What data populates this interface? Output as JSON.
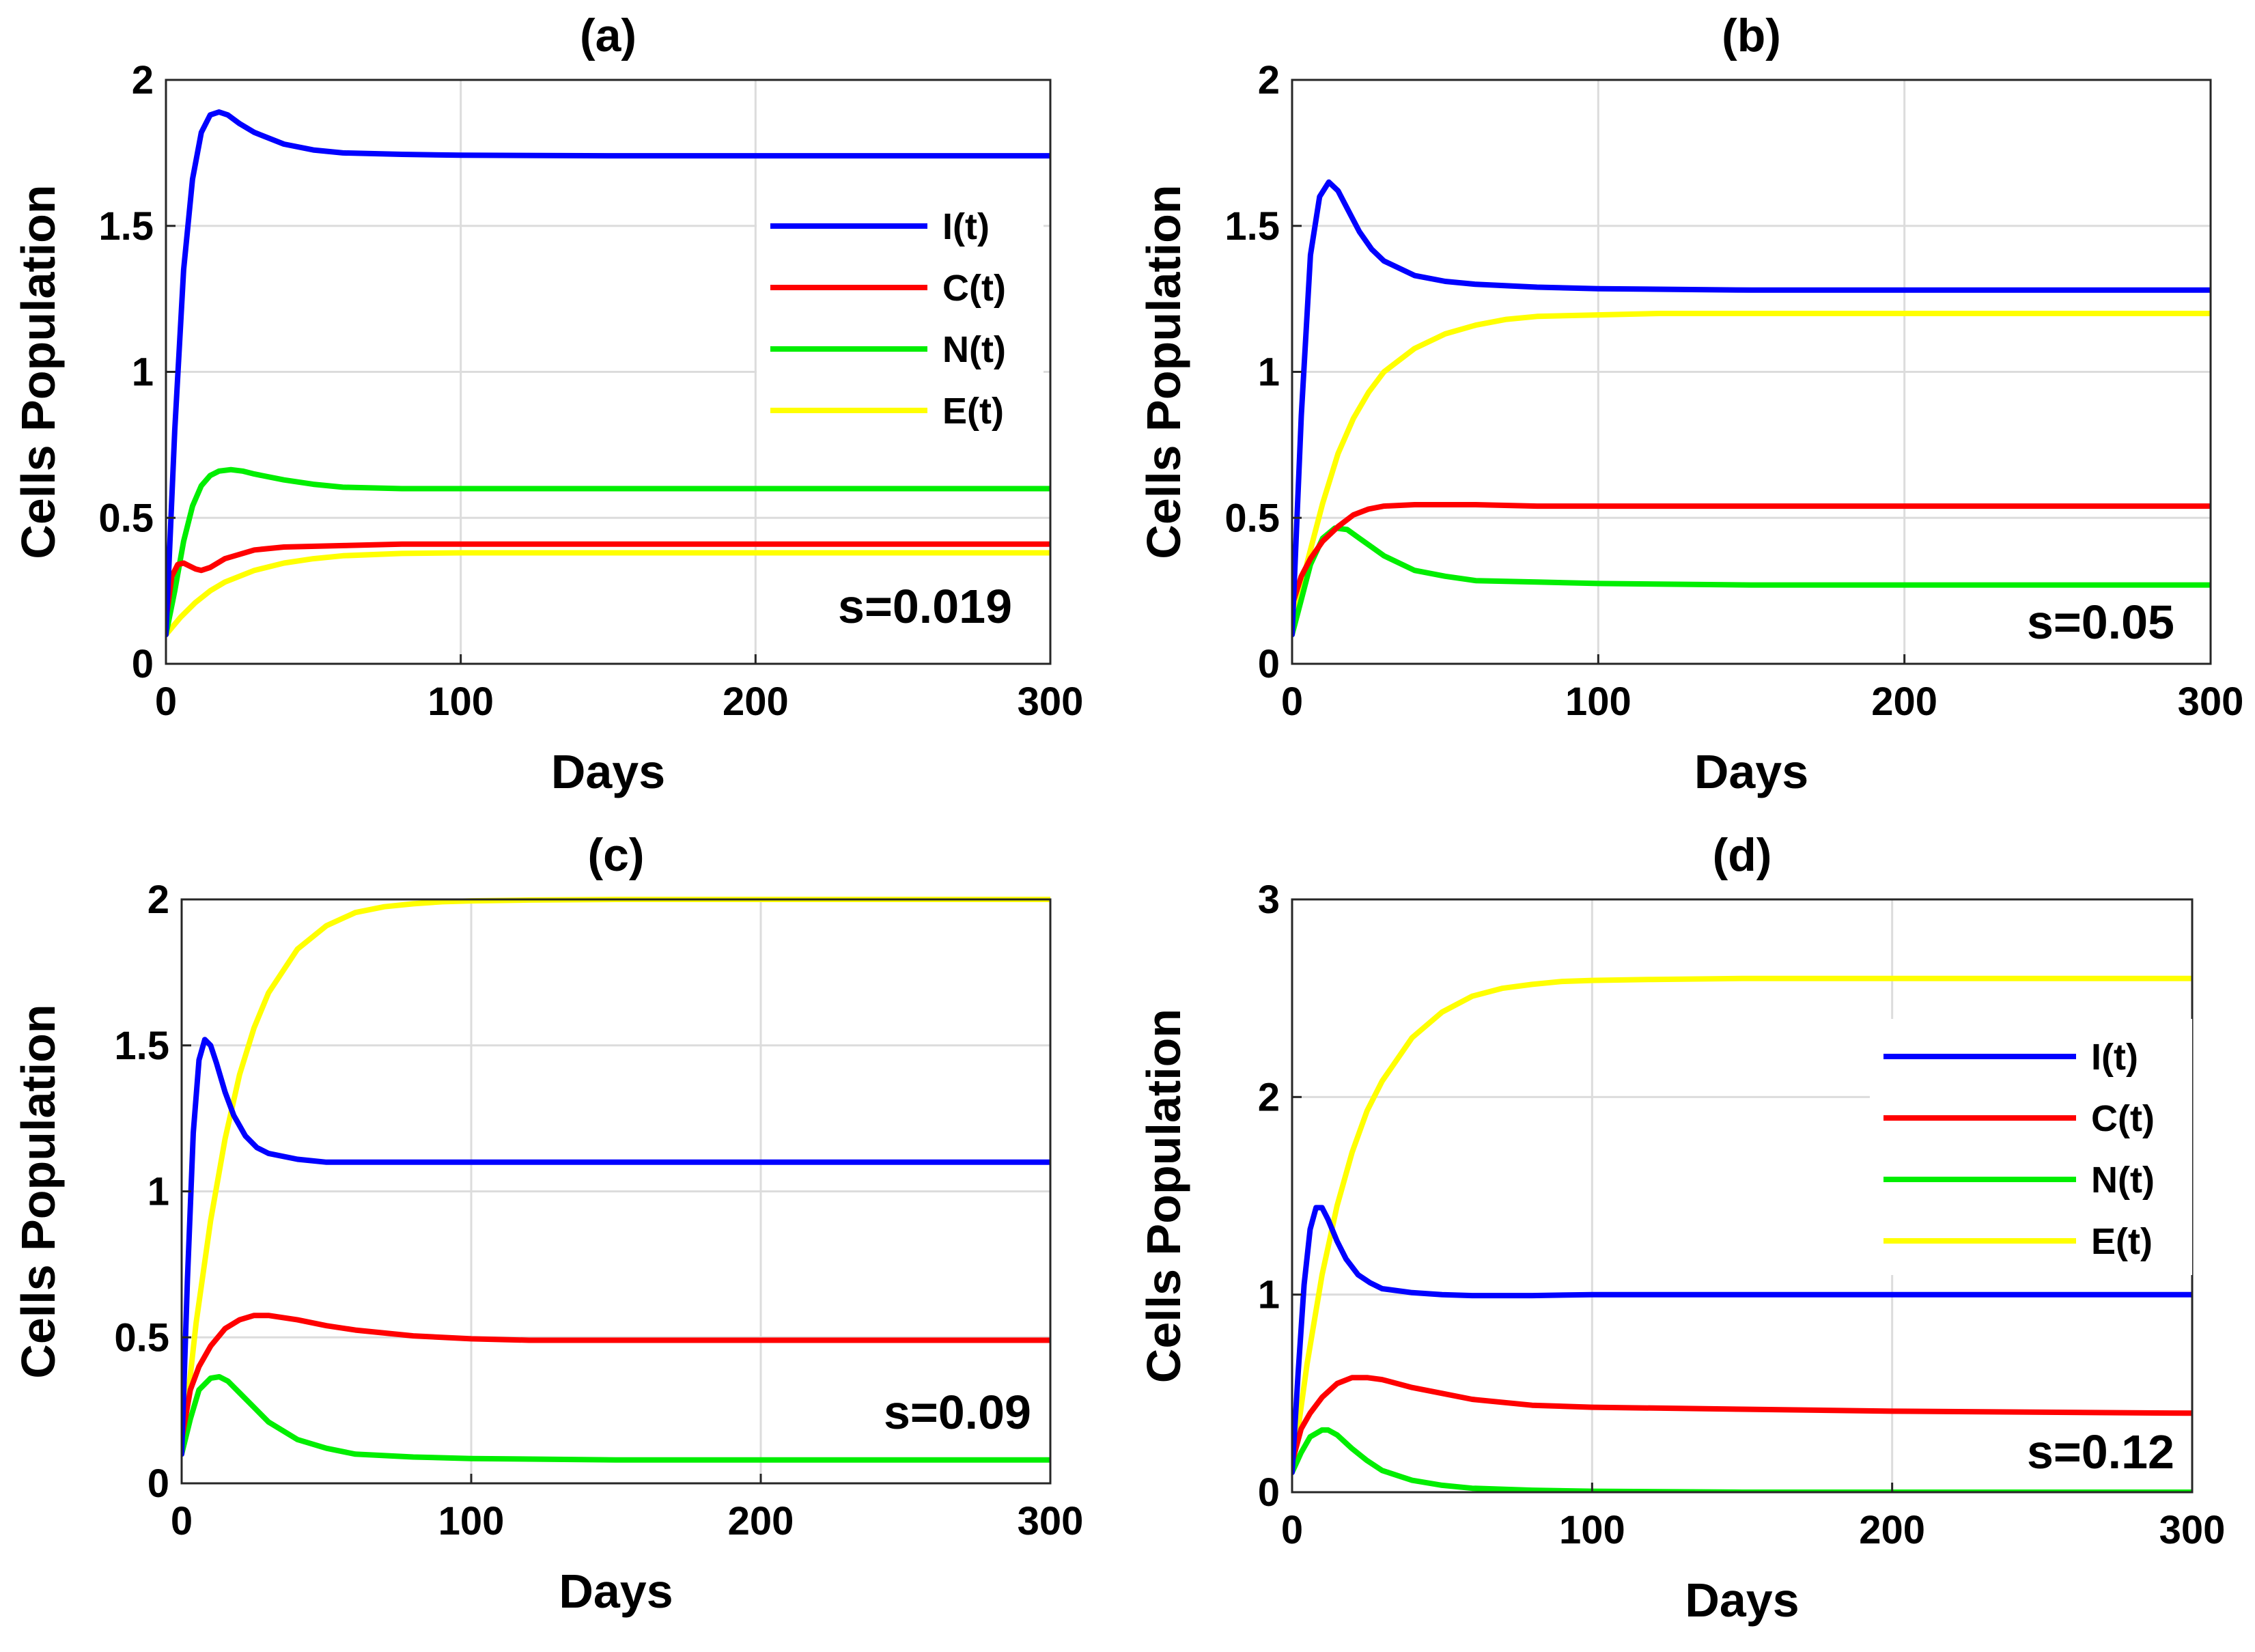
{
  "chart_data": [
    {
      "type": "line",
      "title": "(a)",
      "xlabel": "Days",
      "ylabel": "Cells Population",
      "xlim": [
        0,
        300
      ],
      "ylim": [
        0,
        2
      ],
      "xticks": [
        0,
        100,
        200,
        300
      ],
      "yticks": [
        0,
        0.5,
        1,
        1.5,
        2
      ],
      "ytick_labels": [
        "0",
        "0.5",
        "1",
        "1.5",
        "2"
      ],
      "grid": true,
      "annotation": "s=0.019",
      "legend": {
        "visible": true,
        "position": "top-right"
      },
      "series": [
        {
          "name": "I(t)",
          "color": "#0000ff",
          "x": [
            0,
            3,
            6,
            9,
            12,
            15,
            18,
            21,
            25,
            30,
            40,
            50,
            60,
            80,
            100,
            150,
            200,
            250,
            300
          ],
          "y": [
            0.1,
            0.8,
            1.35,
            1.66,
            1.82,
            1.88,
            1.89,
            1.88,
            1.85,
            1.82,
            1.78,
            1.76,
            1.75,
            1.745,
            1.742,
            1.74,
            1.74,
            1.74,
            1.74
          ]
        },
        {
          "name": "C(t)",
          "color": "#ff0000",
          "x": [
            0,
            2,
            4,
            6,
            8,
            10,
            12,
            15,
            20,
            30,
            40,
            60,
            80,
            100,
            150,
            200,
            300
          ],
          "y": [
            0.15,
            0.3,
            0.34,
            0.345,
            0.335,
            0.325,
            0.32,
            0.33,
            0.36,
            0.39,
            0.4,
            0.405,
            0.41,
            0.41,
            0.41,
            0.41,
            0.41
          ]
        },
        {
          "name": "N(t)",
          "color": "#00ee00",
          "x": [
            0,
            3,
            6,
            9,
            12,
            15,
            18,
            22,
            26,
            30,
            40,
            50,
            60,
            80,
            100,
            150,
            200,
            300
          ],
          "y": [
            0.1,
            0.25,
            0.42,
            0.54,
            0.61,
            0.645,
            0.66,
            0.665,
            0.66,
            0.65,
            0.63,
            0.615,
            0.605,
            0.6,
            0.6,
            0.6,
            0.6,
            0.6
          ]
        },
        {
          "name": "E(t)",
          "color": "#ffff00",
          "x": [
            0,
            5,
            10,
            15,
            20,
            30,
            40,
            50,
            60,
            80,
            100,
            150,
            200,
            300
          ],
          "y": [
            0.1,
            0.16,
            0.21,
            0.25,
            0.28,
            0.32,
            0.345,
            0.36,
            0.37,
            0.378,
            0.38,
            0.38,
            0.38,
            0.38
          ]
        }
      ]
    },
    {
      "type": "line",
      "title": "(b)",
      "xlabel": "Days",
      "ylabel": "Cells Population",
      "xlim": [
        0,
        300
      ],
      "ylim": [
        0,
        2
      ],
      "xticks": [
        0,
        100,
        200,
        300
      ],
      "yticks": [
        0,
        0.5,
        1,
        1.5,
        2
      ],
      "ytick_labels": [
        "0",
        "0.5",
        "1",
        "1.5",
        "2"
      ],
      "grid": true,
      "annotation": "s=0.05",
      "legend": {
        "visible": false
      },
      "series": [
        {
          "name": "I(t)",
          "color": "#0000ff",
          "x": [
            0,
            3,
            6,
            9,
            12,
            15,
            18,
            22,
            26,
            30,
            40,
            50,
            60,
            80,
            100,
            150,
            200,
            300
          ],
          "y": [
            0.1,
            0.85,
            1.4,
            1.6,
            1.65,
            1.62,
            1.56,
            1.48,
            1.42,
            1.38,
            1.33,
            1.31,
            1.3,
            1.29,
            1.285,
            1.28,
            1.28,
            1.28
          ]
        },
        {
          "name": "C(t)",
          "color": "#ff0000",
          "x": [
            0,
            3,
            6,
            10,
            15,
            20,
            25,
            30,
            40,
            50,
            60,
            80,
            100,
            150,
            200,
            300
          ],
          "y": [
            0.2,
            0.3,
            0.36,
            0.42,
            0.47,
            0.51,
            0.53,
            0.54,
            0.545,
            0.545,
            0.545,
            0.54,
            0.54,
            0.54,
            0.54,
            0.54
          ]
        },
        {
          "name": "N(t)",
          "color": "#00ee00",
          "x": [
            0,
            3,
            6,
            10,
            14,
            18,
            22,
            26,
            30,
            40,
            50,
            60,
            80,
            100,
            150,
            200,
            300
          ],
          "y": [
            0.1,
            0.22,
            0.34,
            0.43,
            0.465,
            0.46,
            0.43,
            0.4,
            0.37,
            0.32,
            0.3,
            0.285,
            0.28,
            0.275,
            0.27,
            0.27,
            0.27
          ]
        },
        {
          "name": "E(t)",
          "color": "#ffff00",
          "x": [
            0,
            5,
            10,
            15,
            20,
            25,
            30,
            40,
            50,
            60,
            70,
            80,
            100,
            120,
            150,
            200,
            300
          ],
          "y": [
            0.1,
            0.35,
            0.55,
            0.72,
            0.84,
            0.93,
            1.0,
            1.08,
            1.13,
            1.16,
            1.18,
            1.19,
            1.195,
            1.2,
            1.2,
            1.2,
            1.2
          ]
        }
      ]
    },
    {
      "type": "line",
      "title": "(c)",
      "xlabel": "Days",
      "ylabel": "Cells Population",
      "xlim": [
        0,
        300
      ],
      "ylim": [
        0,
        2
      ],
      "xticks": [
        0,
        100,
        200,
        300
      ],
      "yticks": [
        0,
        0.5,
        1,
        1.5,
        2
      ],
      "ytick_labels": [
        "0",
        "0.5",
        "1",
        "1.5",
        "2"
      ],
      "grid": true,
      "annotation": "s=0.09",
      "legend": {
        "visible": false
      },
      "series": [
        {
          "name": "I(t)",
          "color": "#0000ff",
          "x": [
            0,
            2,
            4,
            6,
            8,
            10,
            12,
            15,
            18,
            22,
            26,
            30,
            40,
            50,
            60,
            80,
            100,
            150,
            200,
            300
          ],
          "y": [
            0.1,
            0.7,
            1.2,
            1.45,
            1.52,
            1.5,
            1.44,
            1.34,
            1.26,
            1.19,
            1.15,
            1.13,
            1.11,
            1.1,
            1.1,
            1.1,
            1.1,
            1.1,
            1.1,
            1.1
          ]
        },
        {
          "name": "C(t)",
          "color": "#ff0000",
          "x": [
            0,
            3,
            6,
            10,
            15,
            20,
            25,
            30,
            40,
            50,
            60,
            80,
            100,
            120,
            150,
            200,
            300
          ],
          "y": [
            0.15,
            0.32,
            0.4,
            0.47,
            0.53,
            0.56,
            0.575,
            0.575,
            0.56,
            0.54,
            0.525,
            0.505,
            0.495,
            0.49,
            0.49,
            0.49,
            0.49
          ]
        },
        {
          "name": "N(t)",
          "color": "#00ee00",
          "x": [
            0,
            3,
            6,
            10,
            13,
            16,
            20,
            25,
            30,
            40,
            50,
            60,
            80,
            100,
            150,
            200,
            300
          ],
          "y": [
            0.1,
            0.22,
            0.32,
            0.36,
            0.365,
            0.35,
            0.31,
            0.26,
            0.21,
            0.15,
            0.12,
            0.1,
            0.09,
            0.085,
            0.08,
            0.08,
            0.08
          ]
        },
        {
          "name": "E(t)",
          "color": "#ffff00",
          "x": [
            0,
            5,
            10,
            15,
            20,
            25,
            30,
            40,
            50,
            60,
            70,
            80,
            90,
            100,
            120,
            150,
            200,
            300
          ],
          "y": [
            0.1,
            0.55,
            0.9,
            1.18,
            1.4,
            1.56,
            1.68,
            1.83,
            1.91,
            1.955,
            1.975,
            1.985,
            1.992,
            1.995,
            1.998,
            2.0,
            2.0,
            2.0
          ]
        }
      ]
    },
    {
      "type": "line",
      "title": "(d)",
      "xlabel": "Days",
      "ylabel": "Cells Population",
      "xlim": [
        0,
        300
      ],
      "ylim": [
        0,
        3
      ],
      "xticks": [
        0,
        100,
        200,
        300
      ],
      "yticks": [
        0,
        1,
        2,
        3
      ],
      "ytick_labels": [
        "0",
        "1",
        "2",
        "3"
      ],
      "grid": true,
      "annotation": "s=0.12",
      "legend": {
        "visible": true,
        "position": "right"
      },
      "series": [
        {
          "name": "I(t)",
          "color": "#0000ff",
          "x": [
            0,
            2,
            4,
            6,
            8,
            10,
            12,
            15,
            18,
            22,
            26,
            30,
            40,
            50,
            60,
            80,
            100,
            150,
            200,
            300
          ],
          "y": [
            0.1,
            0.6,
            1.05,
            1.33,
            1.44,
            1.44,
            1.38,
            1.27,
            1.18,
            1.1,
            1.06,
            1.03,
            1.01,
            1.0,
            0.995,
            0.995,
            1.0,
            1.0,
            1.0,
            1.0
          ]
        },
        {
          "name": "C(t)",
          "color": "#ff0000",
          "x": [
            0,
            3,
            6,
            10,
            15,
            20,
            25,
            30,
            40,
            50,
            60,
            80,
            100,
            150,
            200,
            300
          ],
          "y": [
            0.15,
            0.32,
            0.4,
            0.48,
            0.55,
            0.58,
            0.58,
            0.57,
            0.53,
            0.5,
            0.47,
            0.44,
            0.43,
            0.42,
            0.41,
            0.4
          ]
        },
        {
          "name": "N(t)",
          "color": "#00ee00",
          "x": [
            0,
            3,
            6,
            10,
            12,
            15,
            20,
            25,
            30,
            40,
            50,
            60,
            80,
            100,
            150,
            200,
            300
          ],
          "y": [
            0.1,
            0.2,
            0.28,
            0.315,
            0.315,
            0.29,
            0.22,
            0.16,
            0.11,
            0.06,
            0.035,
            0.02,
            0.01,
            0.005,
            0.0,
            0.0,
            0.0
          ]
        },
        {
          "name": "E(t)",
          "color": "#ffff00",
          "x": [
            0,
            5,
            10,
            15,
            20,
            25,
            30,
            40,
            50,
            60,
            70,
            80,
            90,
            100,
            120,
            150,
            200,
            300
          ],
          "y": [
            0.1,
            0.65,
            1.1,
            1.45,
            1.72,
            1.93,
            2.08,
            2.3,
            2.43,
            2.51,
            2.55,
            2.57,
            2.585,
            2.59,
            2.595,
            2.6,
            2.6,
            2.6
          ]
        }
      ]
    }
  ]
}
